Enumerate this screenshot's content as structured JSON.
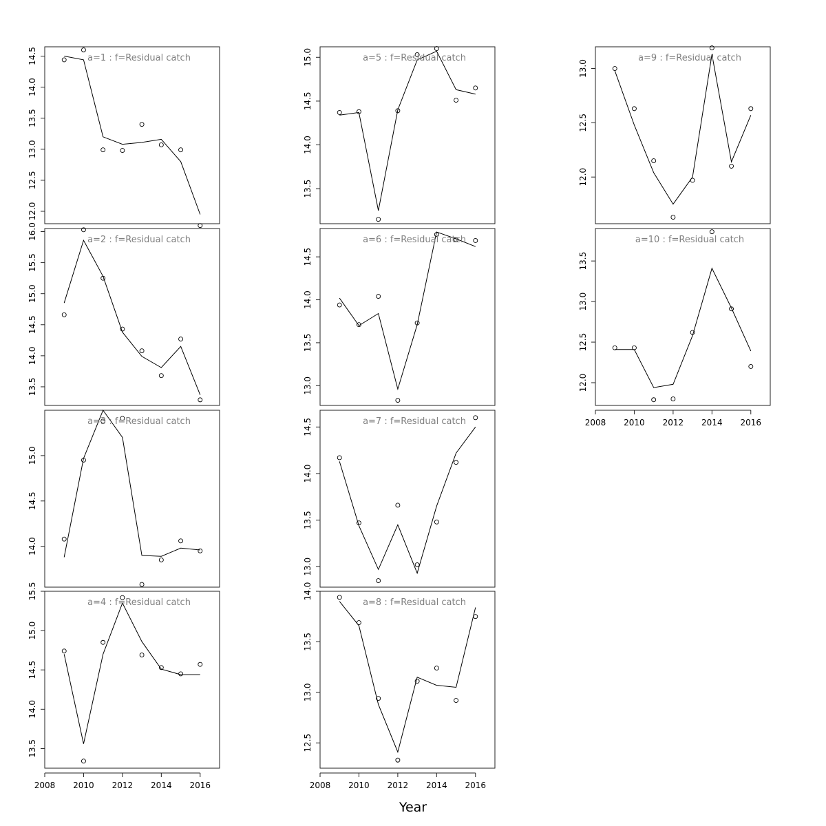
{
  "chart_data": {
    "type": "scatter",
    "xlabel": "Year",
    "x": [
      2009,
      2010,
      2011,
      2012,
      2013,
      2014,
      2015,
      2016
    ],
    "x_ticks": [
      2008,
      2010,
      2012,
      2014,
      2016
    ],
    "xlim": [
      2008,
      2017
    ],
    "panels": [
      {
        "title": "a=1  :  f=Residual catch",
        "ylim": [
          11.8,
          14.65
        ],
        "y_ticks": [
          12.0,
          12.5,
          13.0,
          13.5,
          14.0,
          14.5
        ],
        "y_tick_labels": [
          "12.0",
          "12.5",
          "13.0",
          "13.5",
          "14.0",
          "14.5"
        ],
        "observed": [
          14.44,
          14.6,
          12.99,
          12.98,
          13.4,
          13.07,
          12.99,
          11.77
        ],
        "fitted": [
          14.5,
          14.44,
          13.2,
          13.08,
          13.11,
          13.16,
          12.8,
          11.95
        ]
      },
      {
        "title": "a=2  :  f=Residual catch",
        "ylim": [
          13.2,
          16.05
        ],
        "y_ticks": [
          13.5,
          14.0,
          14.5,
          15.0,
          15.5,
          16.0
        ],
        "y_tick_labels": [
          "13.5",
          "14.0",
          "14.5",
          "15.0",
          "15.5",
          "16.0"
        ],
        "observed": [
          14.66,
          16.03,
          15.25,
          14.43,
          14.08,
          13.68,
          14.27,
          13.29
        ],
        "fitted": [
          14.85,
          15.86,
          15.28,
          14.38,
          13.99,
          13.81,
          14.15,
          13.37
        ]
      },
      {
        "title": "a=3  :  f=Residual catch",
        "ylim": [
          13.55,
          15.5
        ],
        "y_ticks": [
          14.0,
          14.5,
          15.0
        ],
        "y_tick_labels": [
          "14.0",
          "14.5",
          "15.0"
        ],
        "observed": [
          14.08,
          14.95,
          15.38,
          15.41,
          13.58,
          13.85,
          14.06,
          13.95
        ],
        "fitted": [
          13.88,
          14.97,
          15.5,
          15.2,
          13.9,
          13.89,
          13.98,
          13.96
        ]
      },
      {
        "title": "a=4  :  f=Residual catch",
        "ylim": [
          13.25,
          15.5
        ],
        "y_ticks": [
          13.5,
          14.0,
          14.5,
          15.0,
          15.5
        ],
        "y_tick_labels": [
          "13.5",
          "14.0",
          "14.5",
          "15.0",
          "15.5"
        ],
        "observed": [
          14.74,
          13.34,
          14.85,
          15.42,
          14.69,
          14.53,
          14.45,
          14.57
        ],
        "fitted": [
          14.7,
          13.56,
          14.7,
          15.35,
          14.86,
          14.51,
          14.44,
          14.44
        ]
      },
      {
        "title": "a=5  :  f=Residual catch",
        "ylim": [
          13.1,
          15.12
        ],
        "y_ticks": [
          13.5,
          14.0,
          14.5,
          15.0
        ],
        "y_tick_labels": [
          "13.5",
          "14.0",
          "14.5",
          "15.0"
        ],
        "observed": [
          14.37,
          14.38,
          13.15,
          14.39,
          15.03,
          15.1,
          14.51,
          14.65
        ],
        "fitted": [
          14.34,
          14.37,
          13.25,
          14.4,
          14.97,
          15.07,
          14.63,
          14.58
        ]
      },
      {
        "title": "a=6  :  f=Residual catch",
        "ylim": [
          12.77,
          14.83
        ],
        "y_ticks": [
          13.0,
          13.5,
          14.0,
          14.5
        ],
        "y_tick_labels": [
          "13.0",
          "13.5",
          "14.0",
          "14.5"
        ],
        "observed": [
          13.94,
          13.71,
          14.04,
          12.83,
          13.73,
          14.76,
          14.7,
          14.69
        ],
        "fitted": [
          14.02,
          13.7,
          13.84,
          12.96,
          13.71,
          14.79,
          14.71,
          14.62
        ]
      },
      {
        "title": "a=7  :  f=Residual catch",
        "ylim": [
          12.78,
          14.68
        ],
        "y_ticks": [
          13.0,
          13.5,
          14.0,
          14.5
        ],
        "y_tick_labels": [
          "13.0",
          "13.5",
          "14.0",
          "14.5"
        ],
        "observed": [
          14.17,
          13.47,
          12.85,
          13.66,
          13.02,
          13.48,
          14.12,
          14.6
        ],
        "fitted": [
          14.13,
          13.44,
          12.97,
          13.45,
          12.93,
          13.65,
          14.22,
          14.5
        ]
      },
      {
        "title": "a=8  :  f=Residual catch",
        "ylim": [
          12.25,
          14.0
        ],
        "y_ticks": [
          12.5,
          13.0,
          13.5,
          14.0
        ],
        "y_tick_labels": [
          "12.5",
          "13.0",
          "13.5",
          "14.0"
        ],
        "observed": [
          13.94,
          13.69,
          12.94,
          12.33,
          13.11,
          13.24,
          12.92,
          13.75
        ],
        "fitted": [
          13.9,
          13.66,
          12.88,
          12.41,
          13.15,
          13.07,
          13.05,
          13.84
        ]
      },
      {
        "title": "a=9  :  f=Residual catch",
        "ylim": [
          11.57,
          13.2
        ],
        "y_ticks": [
          12.0,
          12.5,
          13.0
        ],
        "y_tick_labels": [
          "12.0",
          "12.5",
          "13.0"
        ],
        "observed": [
          13.0,
          12.63,
          12.15,
          11.63,
          11.97,
          13.19,
          12.1,
          12.63
        ],
        "fitted": [
          12.98,
          12.48,
          12.04,
          11.75,
          12.0,
          13.13,
          12.14,
          12.57
        ]
      },
      {
        "title": "a=10  :  f=Residual catch",
        "ylim": [
          11.72,
          13.9
        ],
        "y_ticks": [
          12.0,
          12.5,
          13.0,
          13.5
        ],
        "y_tick_labels": [
          "12.0",
          "12.5",
          "13.0",
          "13.5"
        ],
        "observed": [
          12.43,
          12.43,
          11.79,
          11.8,
          12.62,
          13.86,
          12.91,
          12.2
        ],
        "fitted": [
          12.41,
          12.41,
          11.94,
          11.98,
          12.58,
          13.41,
          12.92,
          12.39
        ]
      }
    ]
  }
}
